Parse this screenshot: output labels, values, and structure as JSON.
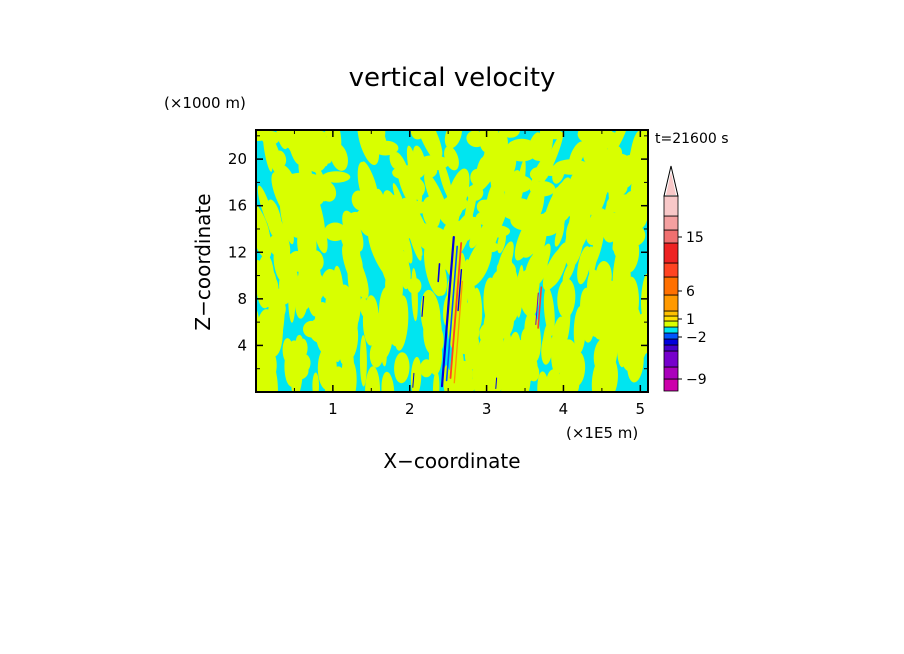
{
  "chart_data": {
    "type": "heatmap",
    "title": "vertical velocity",
    "time_label": "t=21600 s",
    "xlabel": "X−coordinate",
    "ylabel": "Z−coordinate",
    "x_unit": "(×1E5 m)",
    "y_unit": "(×1000 m)",
    "xlim": [
      0,
      5.1
    ],
    "ylim": [
      0,
      22.5
    ],
    "x_ticks": [
      1,
      2,
      3,
      4,
      5
    ],
    "y_ticks": [
      4,
      8,
      12,
      16,
      20
    ],
    "colorbar": {
      "labels": [
        {
          "text": "15",
          "value": 15
        },
        {
          "text": "6",
          "value": 6
        },
        {
          "text": "1",
          "value": 1
        },
        {
          "text": "−2",
          "value": -2
        },
        {
          "text": "−9",
          "value": -9
        }
      ],
      "levels": [
        {
          "color": "#cc00aa"
        },
        {
          "color": "#aa00bb"
        },
        {
          "color": "#7700cc"
        },
        {
          "color": "#4400cc"
        },
        {
          "color": "#0000dd"
        },
        {
          "color": "#0055ff"
        },
        {
          "color": "#00e5f0"
        },
        {
          "color": "#d8ff00"
        },
        {
          "color": "#ffe000"
        },
        {
          "color": "#ffc000"
        },
        {
          "color": "#ff9900"
        },
        {
          "color": "#ff7000"
        },
        {
          "color": "#ff4422"
        },
        {
          "color": "#ee2222"
        },
        {
          "color": "#f07070"
        },
        {
          "color": "#f4a0a0"
        },
        {
          "color": "#f8c8c8"
        }
      ]
    },
    "field_colors": {
      "background": "#00e5f0",
      "positive": "#d8ff00",
      "updraft": "#ff4422",
      "downdraft": "#0000dd"
    }
  }
}
